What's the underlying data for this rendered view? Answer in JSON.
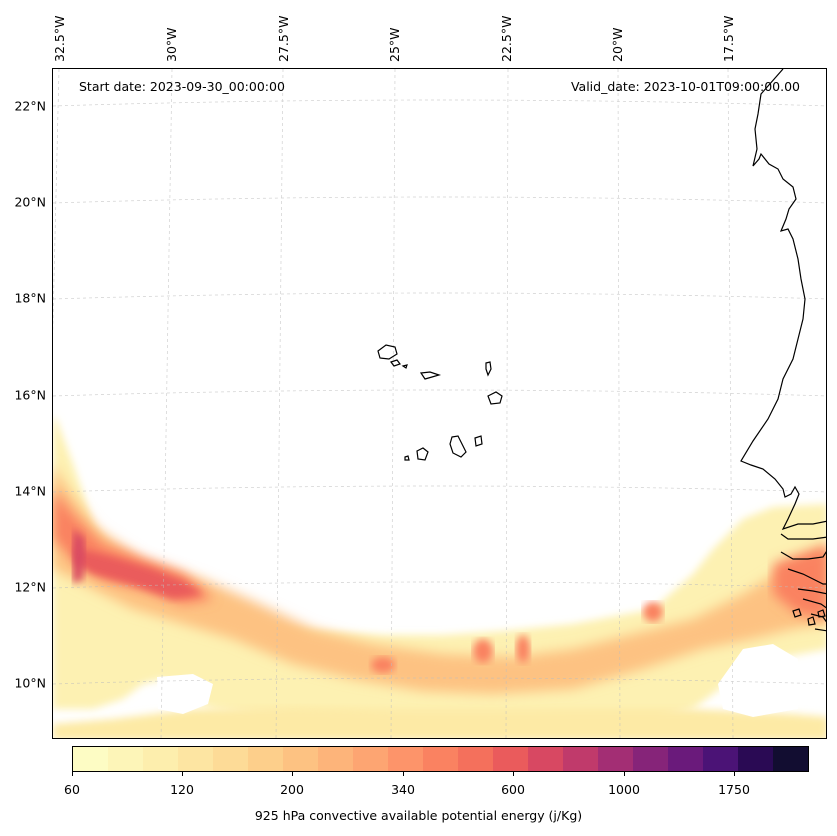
{
  "map": {
    "start_date": "Start date: 2023-09-30_00:00:00",
    "valid_date": "Valid_date: 2023-10-01T09:00:00.00",
    "latitude_labels": [
      "22°N",
      "20°N",
      "18°N",
      "16°N",
      "14°N",
      "12°N",
      "10°N"
    ],
    "longitude_labels": [
      "32.5°W",
      "30°W",
      "27.5°W",
      "25°W",
      "22.5°W",
      "20°W",
      "17.5°W"
    ],
    "gridlines": true,
    "coastline_color": "#000000"
  },
  "colorbar": {
    "title": "925 hPa convective available potential energy (j/Kg)",
    "tick_labels": [
      "60",
      "120",
      "200",
      "340",
      "600",
      "1000",
      "1750"
    ],
    "colors": [
      "#fdfcc4",
      "#fdf5b8",
      "#fdeead",
      "#fde5a2",
      "#fddb97",
      "#fdcf8b",
      "#fdc282",
      "#fdb47a",
      "#fda572",
      "#fd946a",
      "#fa8261",
      "#f4705c",
      "#ea5b5c",
      "#d84862",
      "#c03a6b",
      "#a32e74",
      "#862479",
      "#6a1a7b",
      "#4b1376",
      "#2a0a54",
      "#120d31"
    ]
  }
}
